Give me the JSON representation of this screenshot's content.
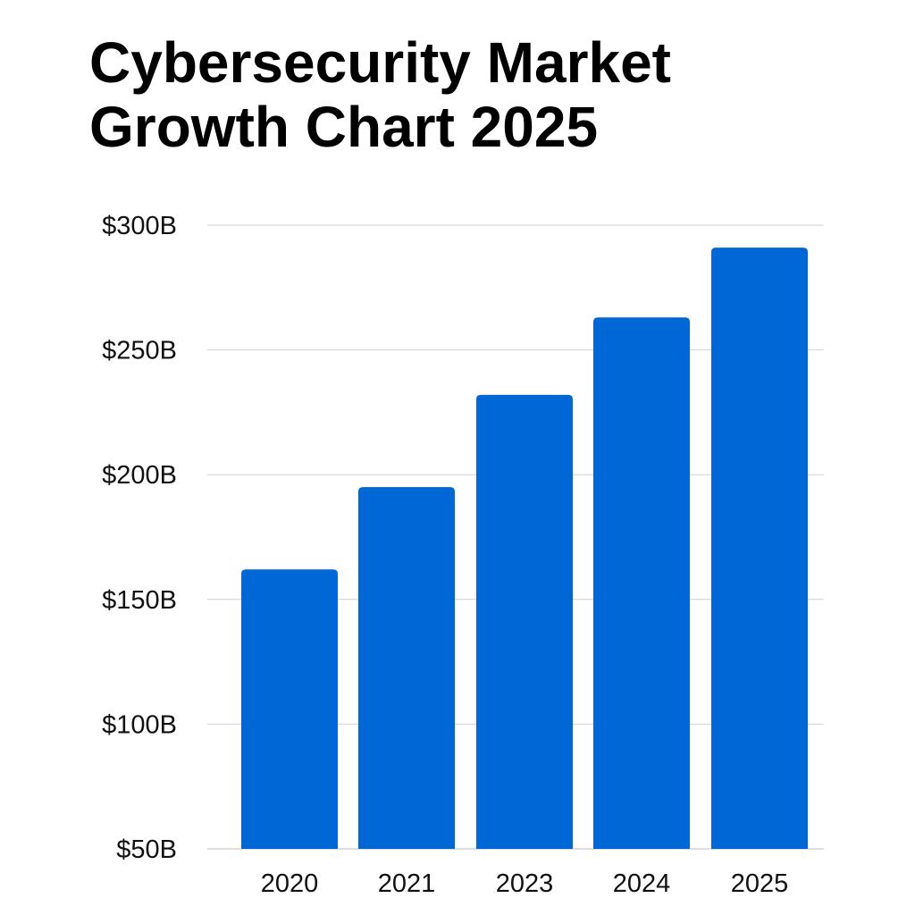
{
  "chart_data": {
    "type": "bar",
    "title_lines": [
      "Cybersecurity Market",
      "Growth Chart 2025"
    ],
    "title": "Cybersecurity Market Growth Chart 2025",
    "xlabel": "",
    "ylabel": "",
    "categories": [
      "2020",
      "2021",
      "2023",
      "2024",
      "2025"
    ],
    "values": [
      162,
      195,
      232,
      263,
      291
    ],
    "ylim": [
      50,
      300
    ],
    "yticks": [
      50,
      100,
      150,
      200,
      250,
      300
    ],
    "ytick_labels": [
      "$50B",
      "$100B",
      "$150B",
      "$200B",
      "$250B",
      "$300B"
    ],
    "grid": true,
    "legend": "none",
    "bar_color": "#0067d6",
    "grid_color": "#d0d0d0"
  }
}
